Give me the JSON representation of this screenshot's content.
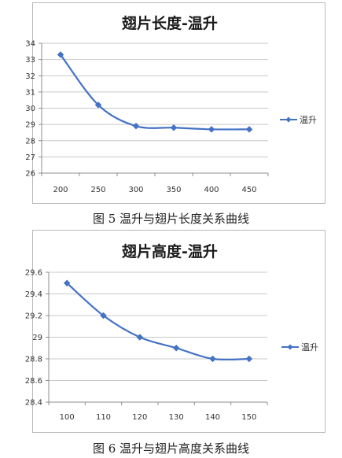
{
  "charts": [
    {
      "caption": "图 5 温升与翅片长度关系曲线",
      "color": "#4472C4",
      "chart_data": {
        "type": "line",
        "title": "翅片长度-温升",
        "xlabel": "",
        "ylabel": "",
        "x": [
          200,
          250,
          300,
          350,
          400,
          450
        ],
        "xticks": [
          "200",
          "250",
          "300",
          "350",
          "400",
          "450"
        ],
        "ylim": [
          26,
          34
        ],
        "yticks": [
          "26",
          "27",
          "28",
          "29",
          "30",
          "31",
          "32",
          "33",
          "34"
        ],
        "grid": true,
        "legend_position": "right",
        "series": [
          {
            "name": "温升",
            "values": [
              33.3,
              30.2,
              28.9,
              28.8,
              28.7,
              28.7
            ]
          }
        ]
      }
    },
    {
      "caption": "图 6  温升与翅片高度关系曲线",
      "color": "#4472C4",
      "chart_data": {
        "type": "line",
        "title": "翅片高度-温升",
        "xlabel": "",
        "ylabel": "",
        "x": [
          100,
          110,
          120,
          130,
          140,
          150
        ],
        "xticks": [
          "100",
          "110",
          "120",
          "130",
          "140",
          "150"
        ],
        "ylim": [
          28.4,
          29.6
        ],
        "yticks": [
          "28.4",
          "28.6",
          "28.8",
          "29",
          "29.2",
          "29.4",
          "29.6"
        ],
        "grid": true,
        "legend_position": "right",
        "series": [
          {
            "name": "温升",
            "values": [
              29.5,
              29.2,
              29.0,
              28.9,
              28.8,
              28.8
            ]
          }
        ]
      }
    }
  ]
}
